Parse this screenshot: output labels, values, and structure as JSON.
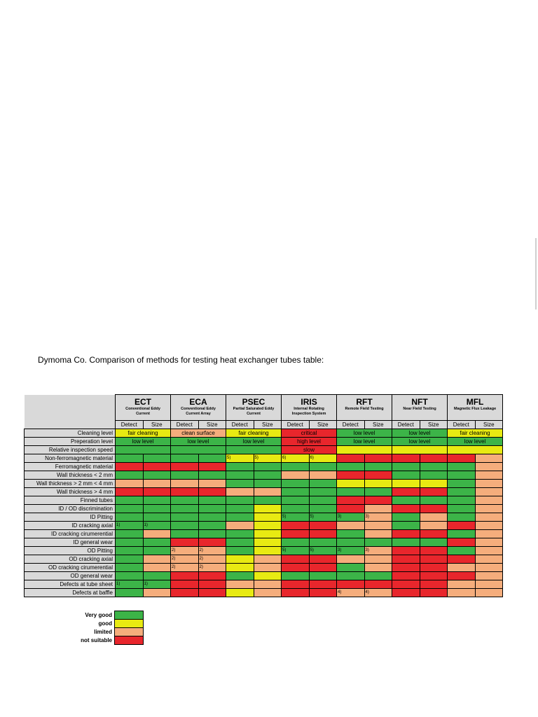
{
  "caption": "Dymoma Co. Comparison of methods for testing heat exchanger tubes table:",
  "colors": {
    "G": "#3cb448",
    "Y": "#e8ea12",
    "O": "#f5ad7c",
    "R": "#e8262c",
    "header_bg": "#d9d9d9"
  },
  "methods": [
    {
      "abbr": "ECT",
      "full": "Conventional Eddy Current",
      "detect": "Detect",
      "size": "Size"
    },
    {
      "abbr": "ECA",
      "full": "Conventional Eddy Current Array",
      "detect": "Detect",
      "size": "Size"
    },
    {
      "abbr": "PSEC",
      "full": "Partial Saturated Eddy Current",
      "detect": "Detect",
      "size": "Size"
    },
    {
      "abbr": "IRIS",
      "full": "Internal Rotating Inspection System",
      "detect": "Detect",
      "size": "Size"
    },
    {
      "abbr": "RFT",
      "full": "Remote Field Testing",
      "detect": "Detect",
      "size": "Size"
    },
    {
      "abbr": "NFT",
      "full": "Near Field Testing",
      "detect": "Detect",
      "size": "Size"
    },
    {
      "abbr": "MFL",
      "full": "Magnetic Flux Leakage",
      "detect": "Detect",
      "size": "Size"
    }
  ],
  "criteria": [
    {
      "label": "Cleaning level",
      "cells": [
        {
          "text": "fair cleaning",
          "color": "Y"
        },
        {
          "text": "clean surface",
          "color": "O"
        },
        {
          "text": "fair cleaning",
          "color": "Y"
        },
        {
          "text": "critical",
          "color": "R"
        },
        {
          "text": "low level",
          "color": "G"
        },
        {
          "text": "low level",
          "color": "G"
        },
        {
          "text": "fair cleaning",
          "color": "Y"
        }
      ]
    },
    {
      "label": "Preperation level",
      "cells": [
        {
          "text": "low level",
          "color": "G"
        },
        {
          "text": "low level",
          "color": "G"
        },
        {
          "text": "low level",
          "color": "G"
        },
        {
          "text": "high level",
          "color": "R"
        },
        {
          "text": "low level",
          "color": "G"
        },
        {
          "text": "low level",
          "color": "G"
        },
        {
          "text": "low level",
          "color": "G"
        }
      ]
    },
    {
      "label": "Relative inspection speed",
      "cells": [
        {
          "text": "",
          "color": "G"
        },
        {
          "text": "",
          "color": "G"
        },
        {
          "text": "",
          "color": "G"
        },
        {
          "text": "slow",
          "color": "R"
        },
        {
          "text": "",
          "color": "Y"
        },
        {
          "text": "",
          "color": "Y"
        },
        {
          "text": "",
          "color": "Y"
        }
      ]
    }
  ],
  "rows": [
    {
      "label": "Non-ferromagnetic material",
      "cells": [
        {
          "c": "G"
        },
        {
          "c": "G"
        },
        {
          "c": "G"
        },
        {
          "c": "G"
        },
        {
          "c": "Y",
          "n": "5)"
        },
        {
          "c": "Y",
          "n": "5)"
        },
        {
          "c": "Y",
          "n": "6)"
        },
        {
          "c": "Y",
          "n": "6)"
        },
        {
          "c": "R"
        },
        {
          "c": "R"
        },
        {
          "c": "R"
        },
        {
          "c": "R"
        },
        {
          "c": "R"
        },
        {
          "c": "O"
        }
      ]
    },
    {
      "label": "Ferromagnetic material",
      "cells": [
        {
          "c": "R"
        },
        {
          "c": "R"
        },
        {
          "c": "R"
        },
        {
          "c": "R"
        },
        {
          "c": "G"
        },
        {
          "c": "G"
        },
        {
          "c": "G"
        },
        {
          "c": "G"
        },
        {
          "c": "G"
        },
        {
          "c": "G"
        },
        {
          "c": "G"
        },
        {
          "c": "G"
        },
        {
          "c": "G"
        },
        {
          "c": "O"
        }
      ]
    },
    {
      "label": "Wall thickness < 2 mm",
      "cells": [
        {
          "c": "G"
        },
        {
          "c": "G"
        },
        {
          "c": "G"
        },
        {
          "c": "G"
        },
        {
          "c": "G"
        },
        {
          "c": "G"
        },
        {
          "c": "O"
        },
        {
          "c": "O"
        },
        {
          "c": "R"
        },
        {
          "c": "R"
        },
        {
          "c": "G"
        },
        {
          "c": "G"
        },
        {
          "c": "G"
        },
        {
          "c": "O"
        }
      ]
    },
    {
      "label": "Wall thickness  > 2 mm < 4 mm",
      "cells": [
        {
          "c": "O"
        },
        {
          "c": "O"
        },
        {
          "c": "O"
        },
        {
          "c": "O"
        },
        {
          "c": "G"
        },
        {
          "c": "G"
        },
        {
          "c": "G"
        },
        {
          "c": "G"
        },
        {
          "c": "Y"
        },
        {
          "c": "Y"
        },
        {
          "c": "Y"
        },
        {
          "c": "Y"
        },
        {
          "c": "G"
        },
        {
          "c": "O"
        }
      ]
    },
    {
      "label": "Wall thickness > 4 mm",
      "cells": [
        {
          "c": "R"
        },
        {
          "c": "R"
        },
        {
          "c": "R"
        },
        {
          "c": "R"
        },
        {
          "c": "O"
        },
        {
          "c": "O"
        },
        {
          "c": "G"
        },
        {
          "c": "G"
        },
        {
          "c": "G"
        },
        {
          "c": "G"
        },
        {
          "c": "R"
        },
        {
          "c": "R"
        },
        {
          "c": "G"
        },
        {
          "c": "O"
        }
      ]
    },
    {
      "label": "Finned tubes",
      "cells": [
        {
          "c": "G"
        },
        {
          "c": "G"
        },
        {
          "c": "G"
        },
        {
          "c": "G"
        },
        {
          "c": "G"
        },
        {
          "c": "G"
        },
        {
          "c": "G"
        },
        {
          "c": "G"
        },
        {
          "c": "R"
        },
        {
          "c": "R"
        },
        {
          "c": "G"
        },
        {
          "c": "G"
        },
        {
          "c": "G"
        },
        {
          "c": "O"
        }
      ]
    },
    {
      "label": "ID / OD discrimination",
      "cells": [
        {
          "c": "G"
        },
        {
          "c": "G"
        },
        {
          "c": "G"
        },
        {
          "c": "G"
        },
        {
          "c": "G"
        },
        {
          "c": "Y"
        },
        {
          "c": "G"
        },
        {
          "c": "G"
        },
        {
          "c": "R"
        },
        {
          "c": "O"
        },
        {
          "c": "R"
        },
        {
          "c": "R"
        },
        {
          "c": "G"
        },
        {
          "c": "O"
        }
      ]
    },
    {
      "label": "ID Pitting",
      "cells": [
        {
          "c": "G"
        },
        {
          "c": "G"
        },
        {
          "c": "G"
        },
        {
          "c": "G"
        },
        {
          "c": "G"
        },
        {
          "c": "Y"
        },
        {
          "c": "G",
          "n": "5)"
        },
        {
          "c": "G",
          "n": "5)"
        },
        {
          "c": "G",
          "n": "3)"
        },
        {
          "c": "O",
          "n": "3)"
        },
        {
          "c": "G"
        },
        {
          "c": "O"
        },
        {
          "c": "G"
        },
        {
          "c": "O"
        }
      ]
    },
    {
      "label": "ID cracking axial",
      "cells": [
        {
          "c": "G",
          "n": "1)"
        },
        {
          "c": "G",
          "n": "1)"
        },
        {
          "c": "G"
        },
        {
          "c": "G"
        },
        {
          "c": "O"
        },
        {
          "c": "Y"
        },
        {
          "c": "R"
        },
        {
          "c": "R"
        },
        {
          "c": "O"
        },
        {
          "c": "O"
        },
        {
          "c": "G"
        },
        {
          "c": "O"
        },
        {
          "c": "R"
        },
        {
          "c": "O"
        }
      ]
    },
    {
      "label": "ID cracking cirumerential",
      "cells": [
        {
          "c": "G"
        },
        {
          "c": "O"
        },
        {
          "c": "G"
        },
        {
          "c": "G"
        },
        {
          "c": "G"
        },
        {
          "c": "Y"
        },
        {
          "c": "R"
        },
        {
          "c": "R"
        },
        {
          "c": "G"
        },
        {
          "c": "O"
        },
        {
          "c": "R"
        },
        {
          "c": "R"
        },
        {
          "c": "G"
        },
        {
          "c": "O"
        }
      ]
    },
    {
      "label": "ID general wear",
      "cells": [
        {
          "c": "G"
        },
        {
          "c": "G"
        },
        {
          "c": "R"
        },
        {
          "c": "R"
        },
        {
          "c": "G"
        },
        {
          "c": "Y"
        },
        {
          "c": "G"
        },
        {
          "c": "G"
        },
        {
          "c": "G"
        },
        {
          "c": "G"
        },
        {
          "c": "G"
        },
        {
          "c": "G"
        },
        {
          "c": "R"
        },
        {
          "c": "O"
        }
      ]
    },
    {
      "label": "OD Pitting",
      "cells": [
        {
          "c": "G"
        },
        {
          "c": "G"
        },
        {
          "c": "O",
          "n": "2)"
        },
        {
          "c": "O",
          "n": "2)"
        },
        {
          "c": "G"
        },
        {
          "c": "Y"
        },
        {
          "c": "G",
          "n": "5)"
        },
        {
          "c": "G",
          "n": "5)"
        },
        {
          "c": "G",
          "n": "3)"
        },
        {
          "c": "O",
          "n": "3)"
        },
        {
          "c": "R"
        },
        {
          "c": "R"
        },
        {
          "c": "G"
        },
        {
          "c": "O"
        }
      ]
    },
    {
      "label": "OD cracking axial",
      "cells": [
        {
          "c": "G"
        },
        {
          "c": "O"
        },
        {
          "c": "O",
          "n": "2)"
        },
        {
          "c": "O",
          "n": "2)"
        },
        {
          "c": "Y"
        },
        {
          "c": "O"
        },
        {
          "c": "R"
        },
        {
          "c": "R"
        },
        {
          "c": "O"
        },
        {
          "c": "O"
        },
        {
          "c": "R"
        },
        {
          "c": "R"
        },
        {
          "c": "R"
        },
        {
          "c": "O"
        }
      ]
    },
    {
      "label": "OD cracking cirumerential",
      "cells": [
        {
          "c": "G"
        },
        {
          "c": "O"
        },
        {
          "c": "O",
          "n": "2)"
        },
        {
          "c": "O",
          "n": "2)"
        },
        {
          "c": "Y"
        },
        {
          "c": "O"
        },
        {
          "c": "R"
        },
        {
          "c": "R"
        },
        {
          "c": "G"
        },
        {
          "c": "O"
        },
        {
          "c": "R"
        },
        {
          "c": "R"
        },
        {
          "c": "O"
        },
        {
          "c": "O"
        }
      ]
    },
    {
      "label": "OD general wear",
      "cells": [
        {
          "c": "G"
        },
        {
          "c": "G"
        },
        {
          "c": "R"
        },
        {
          "c": "R"
        },
        {
          "c": "G"
        },
        {
          "c": "Y"
        },
        {
          "c": "G"
        },
        {
          "c": "G"
        },
        {
          "c": "G"
        },
        {
          "c": "G"
        },
        {
          "c": "R"
        },
        {
          "c": "R"
        },
        {
          "c": "R"
        },
        {
          "c": "O"
        }
      ]
    },
    {
      "label": "Defects at tube sheet",
      "cells": [
        {
          "c": "G",
          "n": "1)"
        },
        {
          "c": "G",
          "n": "1)"
        },
        {
          "c": "R"
        },
        {
          "c": "R"
        },
        {
          "c": "O"
        },
        {
          "c": "O"
        },
        {
          "c": "R"
        },
        {
          "c": "R"
        },
        {
          "c": "R"
        },
        {
          "c": "R"
        },
        {
          "c": "R"
        },
        {
          "c": "R"
        },
        {
          "c": "O"
        },
        {
          "c": "O"
        }
      ]
    },
    {
      "label": "Defects at baffle",
      "cells": [
        {
          "c": "G"
        },
        {
          "c": "O"
        },
        {
          "c": "R"
        },
        {
          "c": "R"
        },
        {
          "c": "Y"
        },
        {
          "c": "O"
        },
        {
          "c": "R"
        },
        {
          "c": "R"
        },
        {
          "c": "O",
          "n": "4)"
        },
        {
          "c": "O",
          "n": "4)"
        },
        {
          "c": "R"
        },
        {
          "c": "R"
        },
        {
          "c": "O"
        },
        {
          "c": "O"
        }
      ]
    }
  ],
  "legend": [
    {
      "label": "Very good",
      "color": "G"
    },
    {
      "label": "good",
      "color": "Y"
    },
    {
      "label": "limited",
      "color": "O"
    },
    {
      "label": "not suitable",
      "color": "R"
    }
  ]
}
